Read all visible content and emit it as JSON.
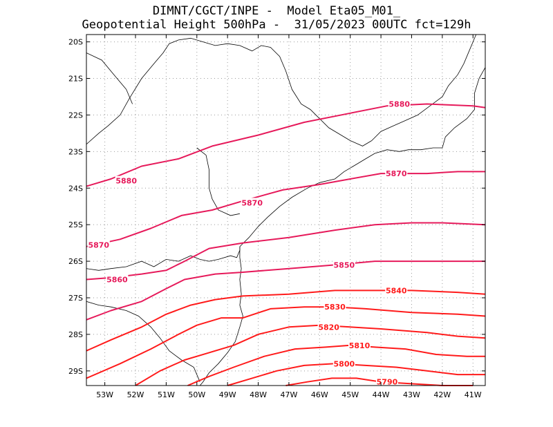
{
  "header": {
    "line1": "DIMNT/CGCT/INPE -  Model Eta05_M01_",
    "line2": "Geopotential Height 500hPa -  31/05/2023 00UTC fct=129h"
  },
  "axes": {
    "lat_labels": [
      "20S",
      "21S",
      "22S",
      "23S",
      "24S",
      "25S",
      "26S",
      "27S",
      "28S",
      "29S"
    ],
    "lon_labels": [
      "53W",
      "52W",
      "51W",
      "50W",
      "49W",
      "48W",
      "47W",
      "46W",
      "45W",
      "44W",
      "43W",
      "42W",
      "41W"
    ]
  },
  "colors": {
    "contour_high": "#e6195a",
    "contour_low": "#ff1a1a",
    "coast": "#000000",
    "grid": "#999999"
  },
  "chart_data": {
    "type": "contour-map",
    "variable": "Geopotential Height 500hPa",
    "units": "gpm",
    "lon_range": [
      -53.6,
      -40.6
    ],
    "lat_range": [
      -29.4,
      -19.8
    ],
    "contours": [
      {
        "level": 5880,
        "labels": [
          "5880",
          "5880"
        ],
        "points": [
          [
            -53.6,
            -23.95
          ],
          [
            -52.8,
            -23.75
          ],
          [
            -51.8,
            -23.4
          ],
          [
            -50.6,
            -23.2
          ],
          [
            -49.5,
            -22.85
          ],
          [
            -48.0,
            -22.55
          ],
          [
            -46.5,
            -22.2
          ],
          [
            -45.0,
            -21.95
          ],
          [
            -43.8,
            -21.75
          ],
          [
            -42.5,
            -21.7
          ],
          [
            -41.0,
            -21.75
          ],
          [
            -40.6,
            -21.8
          ]
        ]
      },
      {
        "level": 5870,
        "labels": [
          "5870",
          "5870",
          "5870"
        ],
        "points": [
          [
            -53.6,
            -25.6
          ],
          [
            -52.5,
            -25.4
          ],
          [
            -51.5,
            -25.1
          ],
          [
            -50.5,
            -24.75
          ],
          [
            -49.5,
            -24.6
          ],
          [
            -48.5,
            -24.35
          ],
          [
            -47.2,
            -24.05
          ],
          [
            -46.0,
            -23.9
          ],
          [
            -45.0,
            -23.75
          ],
          [
            -44.0,
            -23.6
          ],
          [
            -42.5,
            -23.6
          ],
          [
            -41.5,
            -23.55
          ],
          [
            -40.6,
            -23.55
          ]
        ]
      },
      {
        "level": 5860,
        "labels": [
          "5860"
        ],
        "points": [
          [
            -53.6,
            -26.5
          ],
          [
            -52.8,
            -26.45
          ],
          [
            -51.8,
            -26.35
          ],
          [
            -51.0,
            -26.25
          ],
          [
            -50.4,
            -26.0
          ],
          [
            -49.6,
            -25.65
          ],
          [
            -48.5,
            -25.5
          ],
          [
            -47.0,
            -25.35
          ],
          [
            -45.5,
            -25.15
          ],
          [
            -44.2,
            -25.0
          ],
          [
            -43.0,
            -24.95
          ],
          [
            -42.0,
            -24.95
          ],
          [
            -40.6,
            -25.0
          ]
        ]
      },
      {
        "level": 5850,
        "labels": [
          "5850"
        ],
        "points": [
          [
            -53.6,
            -27.6
          ],
          [
            -52.8,
            -27.35
          ],
          [
            -51.8,
            -27.1
          ],
          [
            -51.0,
            -26.75
          ],
          [
            -50.4,
            -26.5
          ],
          [
            -49.4,
            -26.35
          ],
          [
            -48.5,
            -26.3
          ],
          [
            -47.0,
            -26.2
          ],
          [
            -45.5,
            -26.1
          ],
          [
            -44.2,
            -26.0
          ],
          [
            -43.0,
            -26.0
          ],
          [
            -41.5,
            -26.0
          ],
          [
            -40.6,
            -26.0
          ]
        ]
      },
      {
        "level": 5840,
        "labels": [
          "5840"
        ],
        "points": [
          [
            -53.6,
            -28.45
          ],
          [
            -52.8,
            -28.15
          ],
          [
            -51.8,
            -27.8
          ],
          [
            -51.0,
            -27.45
          ],
          [
            -50.2,
            -27.2
          ],
          [
            -49.4,
            -27.05
          ],
          [
            -48.5,
            -26.95
          ],
          [
            -47.0,
            -26.9
          ],
          [
            -45.5,
            -26.8
          ],
          [
            -44.5,
            -26.8
          ],
          [
            -43.0,
            -26.8
          ],
          [
            -41.5,
            -26.85
          ],
          [
            -40.6,
            -26.9
          ]
        ]
      },
      {
        "level": 5830,
        "labels": [
          "5830"
        ],
        "points": [
          [
            -53.6,
            -29.2
          ],
          [
            -52.5,
            -28.8
          ],
          [
            -51.5,
            -28.4
          ],
          [
            -50.6,
            -28.0
          ],
          [
            -50.0,
            -27.75
          ],
          [
            -49.2,
            -27.55
          ],
          [
            -48.5,
            -27.55
          ],
          [
            -47.6,
            -27.3
          ],
          [
            -46.5,
            -27.25
          ],
          [
            -45.5,
            -27.25
          ],
          [
            -44.5,
            -27.3
          ],
          [
            -43.0,
            -27.4
          ],
          [
            -41.5,
            -27.45
          ],
          [
            -40.6,
            -27.5
          ]
        ]
      },
      {
        "level": 5820,
        "labels": [
          "5820"
        ],
        "points": [
          [
            -52.0,
            -29.4
          ],
          [
            -51.2,
            -29.0
          ],
          [
            -50.4,
            -28.7
          ],
          [
            -49.6,
            -28.5
          ],
          [
            -48.8,
            -28.3
          ],
          [
            -48.0,
            -28.0
          ],
          [
            -47.0,
            -27.8
          ],
          [
            -46.0,
            -27.75
          ],
          [
            -45.0,
            -27.8
          ],
          [
            -44.0,
            -27.85
          ],
          [
            -42.5,
            -27.95
          ],
          [
            -41.5,
            -28.05
          ],
          [
            -40.6,
            -28.1
          ]
        ]
      },
      {
        "level": 5810,
        "labels": [
          "5810"
        ],
        "points": [
          [
            -50.3,
            -29.4
          ],
          [
            -49.6,
            -29.15
          ],
          [
            -48.8,
            -28.9
          ],
          [
            -47.8,
            -28.6
          ],
          [
            -46.8,
            -28.4
          ],
          [
            -45.8,
            -28.35
          ],
          [
            -45.0,
            -28.3
          ],
          [
            -44.2,
            -28.35
          ],
          [
            -43.2,
            -28.4
          ],
          [
            -42.2,
            -28.55
          ],
          [
            -41.2,
            -28.6
          ],
          [
            -40.6,
            -28.6
          ]
        ]
      },
      {
        "level": 5800,
        "labels": [
          "5800"
        ],
        "points": [
          [
            -49.0,
            -29.4
          ],
          [
            -48.2,
            -29.2
          ],
          [
            -47.4,
            -29.0
          ],
          [
            -46.5,
            -28.85
          ],
          [
            -45.5,
            -28.8
          ],
          [
            -44.5,
            -28.85
          ],
          [
            -43.5,
            -28.9
          ],
          [
            -42.5,
            -29.0
          ],
          [
            -41.5,
            -29.1
          ],
          [
            -40.6,
            -29.1
          ]
        ]
      },
      {
        "level": 5790,
        "labels": [
          "5790"
        ],
        "points": [
          [
            -47.1,
            -29.4
          ],
          [
            -46.4,
            -29.3
          ],
          [
            -45.6,
            -29.2
          ],
          [
            -44.8,
            -29.2
          ],
          [
            -44.0,
            -29.3
          ],
          [
            -43.0,
            -29.35
          ],
          [
            -42.0,
            -29.4
          ],
          [
            -41.0,
            -29.4
          ]
        ]
      }
    ]
  },
  "contour_labels": [
    {
      "text": "5880",
      "lon": -43.4,
      "lat": -21.7,
      "level": 5880
    },
    {
      "text": "5880",
      "lon": -52.3,
      "lat": -23.8,
      "level": 5880
    },
    {
      "text": "5870",
      "lon": -43.5,
      "lat": -23.6,
      "level": 5870
    },
    {
      "text": "5870",
      "lon": -48.2,
      "lat": -24.4,
      "level": 5870
    },
    {
      "text": "5870",
      "lon": -53.2,
      "lat": -25.55,
      "level": 5870
    },
    {
      "text": "5860",
      "lon": -52.6,
      "lat": -26.5,
      "level": 5860
    },
    {
      "text": "5850",
      "lon": -45.2,
      "lat": -26.1,
      "level": 5850
    },
    {
      "text": "5840",
      "lon": -43.5,
      "lat": -26.8,
      "level": 5840
    },
    {
      "text": "5830",
      "lon": -45.5,
      "lat": -27.25,
      "level": 5830
    },
    {
      "text": "5820",
      "lon": -45.7,
      "lat": -27.8,
      "level": 5820
    },
    {
      "text": "5810",
      "lon": -44.7,
      "lat": -28.3,
      "level": 5810
    },
    {
      "text": "5800",
      "lon": -45.2,
      "lat": -28.8,
      "level": 5800
    },
    {
      "text": "5790",
      "lon": -43.8,
      "lat": -29.3,
      "level": 5790
    }
  ],
  "boundaries": [
    {
      "name": "coastline",
      "points": [
        [
          -53.6,
          -26.2
        ],
        [
          -53.2,
          -26.25
        ],
        [
          -52.8,
          -26.2
        ],
        [
          -52.3,
          -26.15
        ],
        [
          -51.8,
          -26.0
        ],
        [
          -51.4,
          -26.15
        ],
        [
          -51.0,
          -25.95
        ],
        [
          -50.6,
          -26.0
        ],
        [
          -50.2,
          -25.85
        ],
        [
          -49.9,
          -25.95
        ],
        [
          -49.6,
          -26.0
        ],
        [
          -49.3,
          -25.95
        ],
        [
          -48.9,
          -25.85
        ],
        [
          -48.7,
          -25.9
        ],
        [
          -48.6,
          -25.7
        ],
        [
          -48.6,
          -25.6
        ]
      ]
    },
    {
      "name": "coastline-sc",
      "points": [
        [
          -48.6,
          -25.6
        ],
        [
          -48.6,
          -25.9
        ],
        [
          -48.55,
          -26.2
        ],
        [
          -48.6,
          -26.5
        ],
        [
          -48.55,
          -26.9
        ],
        [
          -48.6,
          -27.2
        ],
        [
          -48.5,
          -27.5
        ],
        [
          -48.6,
          -27.8
        ],
        [
          -48.75,
          -28.2
        ],
        [
          -49.0,
          -28.5
        ],
        [
          -49.3,
          -28.8
        ],
        [
          -49.6,
          -29.05
        ],
        [
          -49.8,
          -29.3
        ],
        [
          -49.9,
          -29.4
        ]
      ]
    },
    {
      "name": "coastline-sp",
      "points": [
        [
          -48.6,
          -25.6
        ],
        [
          -48.3,
          -25.35
        ],
        [
          -48.0,
          -25.05
        ],
        [
          -47.7,
          -24.8
        ],
        [
          -47.3,
          -24.5
        ],
        [
          -46.9,
          -24.25
        ],
        [
          -46.4,
          -24.0
        ],
        [
          -46.0,
          -23.85
        ],
        [
          -45.5,
          -23.75
        ],
        [
          -45.2,
          -23.55
        ],
        [
          -44.8,
          -23.35
        ],
        [
          -44.5,
          -23.2
        ],
        [
          -44.2,
          -23.05
        ],
        [
          -43.8,
          -22.95
        ],
        [
          -43.4,
          -23.0
        ],
        [
          -43.1,
          -22.95
        ],
        [
          -42.7,
          -22.95
        ],
        [
          -42.3,
          -22.9
        ],
        [
          -42.0,
          -22.9
        ],
        [
          -41.9,
          -22.6
        ],
        [
          -41.6,
          -22.35
        ],
        [
          -41.2,
          -22.1
        ],
        [
          -40.95,
          -21.85
        ],
        [
          -40.95,
          -21.4
        ],
        [
          -40.8,
          -21.0
        ],
        [
          -40.6,
          -20.7
        ]
      ]
    },
    {
      "name": "state-border-1",
      "points": [
        [
          -53.6,
          -22.8
        ],
        [
          -53.2,
          -22.5
        ],
        [
          -52.9,
          -22.3
        ],
        [
          -52.5,
          -22.0
        ],
        [
          -52.2,
          -21.55
        ],
        [
          -51.8,
          -21.0
        ],
        [
          -51.4,
          -20.6
        ],
        [
          -51.1,
          -20.3
        ],
        [
          -50.9,
          -20.05
        ],
        [
          -50.6,
          -19.95
        ],
        [
          -50.2,
          -19.9
        ],
        [
          -49.8,
          -20.0
        ],
        [
          -49.4,
          -20.1
        ],
        [
          -49.0,
          -20.05
        ],
        [
          -48.6,
          -20.1
        ],
        [
          -48.2,
          -20.25
        ],
        [
          -47.9,
          -20.1
        ],
        [
          -47.6,
          -20.15
        ],
        [
          -47.3,
          -20.4
        ],
        [
          -47.1,
          -20.8
        ],
        [
          -46.9,
          -21.3
        ],
        [
          -46.6,
          -21.7
        ],
        [
          -46.3,
          -21.85
        ],
        [
          -46.0,
          -22.1
        ],
        [
          -45.7,
          -22.35
        ],
        [
          -45.4,
          -22.5
        ],
        [
          -45.0,
          -22.7
        ],
        [
          -44.6,
          -22.85
        ],
        [
          -44.3,
          -22.7
        ]
      ]
    },
    {
      "name": "state-border-2",
      "points": [
        [
          -50.0,
          -22.9
        ],
        [
          -49.7,
          -23.1
        ],
        [
          -49.6,
          -23.5
        ],
        [
          -49.6,
          -24.0
        ],
        [
          -49.5,
          -24.3
        ],
        [
          -49.3,
          -24.6
        ],
        [
          -48.9,
          -24.75
        ],
        [
          -48.6,
          -24.7
        ]
      ]
    },
    {
      "name": "state-border-3",
      "points": [
        [
          -53.6,
          -27.1
        ],
        [
          -53.2,
          -27.2
        ],
        [
          -52.8,
          -27.25
        ],
        [
          -52.3,
          -27.35
        ],
        [
          -51.9,
          -27.5
        ],
        [
          -51.5,
          -27.8
        ],
        [
          -51.2,
          -28.1
        ],
        [
          -50.9,
          -28.45
        ],
        [
          -50.5,
          -28.7
        ],
        [
          -50.1,
          -28.9
        ],
        [
          -49.9,
          -29.3
        ]
      ]
    },
    {
      "name": "state-border-4",
      "points": [
        [
          -44.3,
          -22.7
        ],
        [
          -44.0,
          -22.45
        ],
        [
          -43.6,
          -22.3
        ],
        [
          -43.2,
          -22.15
        ],
        [
          -42.8,
          -22.0
        ],
        [
          -42.4,
          -21.75
        ],
        [
          -42.0,
          -21.5
        ],
        [
          -41.8,
          -21.2
        ],
        [
          -41.5,
          -20.9
        ],
        [
          -41.3,
          -20.6
        ],
        [
          -41.1,
          -20.2
        ],
        [
          -40.9,
          -19.8
        ]
      ]
    },
    {
      "name": "state-border-5",
      "points": [
        [
          -53.6,
          -20.3
        ],
        [
          -53.1,
          -20.5
        ],
        [
          -52.7,
          -20.9
        ],
        [
          -52.3,
          -21.3
        ],
        [
          -52.1,
          -21.7
        ]
      ]
    }
  ]
}
